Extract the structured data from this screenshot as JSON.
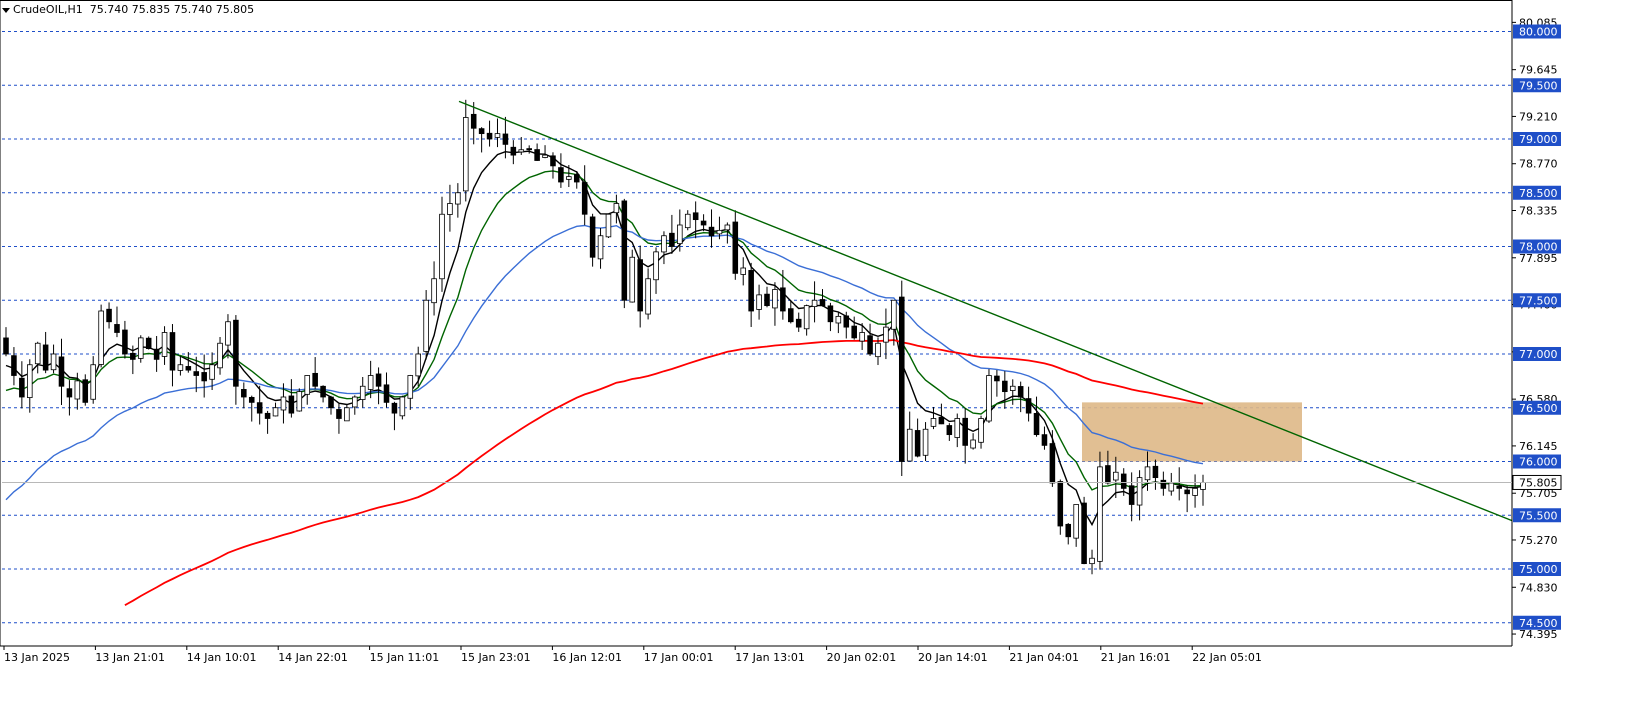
{
  "header": {
    "symbol_timeframe": "CrudeOIL,H1",
    "ohlc": "75.740 75.835 75.740 75.805"
  },
  "colors": {
    "background": "#ffffff",
    "grid_level": "#1f4fc8",
    "bull_body": "#ffffff",
    "bear_body": "#000000",
    "candle_outline": "#000000",
    "ma_fast": "#000000",
    "ma_mid": "#006400",
    "ma_slow": "#3b6fd6",
    "ma_long": "#ff0000",
    "trendline": "#006400",
    "zone_fill": "#deb887",
    "level_label_bg": "#1f4fc8",
    "current_price_bg": "#ffffff"
  },
  "chart_data": {
    "type": "candlestick",
    "symbol": "CrudeOIL",
    "timeframe": "H1",
    "ylim": [
      74.3,
      80.2
    ],
    "y_axis_ticks": [
      80.085,
      79.645,
      79.21,
      78.77,
      78.335,
      77.895,
      77.46,
      77.02,
      76.58,
      76.145,
      75.705,
      75.27,
      74.83,
      74.395
    ],
    "horizontal_levels": [
      80.0,
      79.5,
      79.0,
      78.5,
      78.0,
      77.5,
      77.0,
      76.5,
      76.0,
      75.5,
      75.0,
      74.5
    ],
    "current_price": 75.805,
    "x_labels": [
      "13 Jan 2025",
      "13 Jan 21:01",
      "14 Jan 10:01",
      "14 Jan 22:01",
      "15 Jan 11:01",
      "15 Jan 23:01",
      "16 Jan 12:01",
      "17 Jan 00:01",
      "17 Jan 13:01",
      "20 Jan 02:01",
      "20 Jan 14:01",
      "21 Jan 04:01",
      "21 Jan 16:01",
      "22 Jan 05:01"
    ],
    "candles_close": [
      77.0,
      76.8,
      76.6,
      76.9,
      77.1,
      76.85,
      77.0,
      76.7,
      76.6,
      76.75,
      76.55,
      76.9,
      77.4,
      77.3,
      77.2,
      77.0,
      76.95,
      77.15,
      77.05,
      76.95,
      77.2,
      76.85,
      76.9,
      76.85,
      76.8,
      76.75,
      76.9,
      77.1,
      77.3,
      76.7,
      76.6,
      76.55,
      76.45,
      76.4,
      76.5,
      76.6,
      76.45,
      76.65,
      76.8,
      76.7,
      76.6,
      76.5,
      76.4,
      76.5,
      76.6,
      76.7,
      76.8,
      76.7,
      76.55,
      76.45,
      76.6,
      76.8,
      77.0,
      77.5,
      77.7,
      78.3,
      78.4,
      78.5,
      79.2,
      79.1,
      79.05,
      79.0,
      79.05,
      78.95,
      78.85,
      78.9,
      78.9,
      78.8,
      78.85,
      78.75,
      78.6,
      78.65,
      78.6,
      78.3,
      77.9,
      78.1,
      78.3,
      78.4,
      77.5,
      77.9,
      77.4,
      77.7,
      77.95,
      78.1,
      78.0,
      78.2,
      78.3,
      78.25,
      78.2,
      78.1,
      78.15,
      78.2,
      77.75,
      77.8,
      77.4,
      77.55,
      77.45,
      77.6,
      77.4,
      77.3,
      77.25,
      77.45,
      77.5,
      77.45,
      77.3,
      77.35,
      77.25,
      77.15,
      77.2,
      77.0,
      77.1,
      77.25,
      77.5,
      76.0,
      76.3,
      76.05,
      76.3,
      76.4,
      76.35,
      76.25,
      76.4,
      76.15,
      76.2,
      76.4,
      76.8,
      76.75,
      76.65,
      76.7,
      76.6,
      76.45,
      76.25,
      76.15,
      75.8,
      75.4,
      75.3,
      75.6,
      75.05,
      75.1,
      75.95,
      75.8,
      75.9,
      75.75,
      75.6,
      75.85,
      75.95,
      75.85,
      75.75,
      75.8,
      75.75,
      75.7,
      75.75,
      75.805
    ],
    "indicators": {
      "ma_fast_color": "#000000",
      "ma_mid_color": "#006400",
      "ma_slow_color": "#3b6fd6",
      "ma_long_color": "#ff0000"
    },
    "trendline": {
      "from_x_label": "15 Jan 23:01",
      "from_price": 79.35,
      "to_price_at_right_edge": 75.45
    },
    "zone": {
      "price_low": 76.0,
      "price_high": 76.55
    }
  }
}
